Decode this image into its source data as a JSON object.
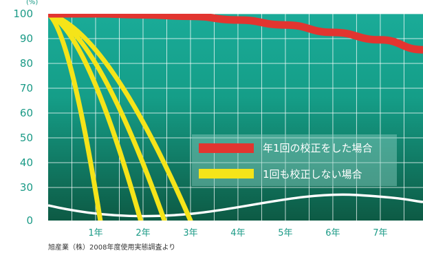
{
  "chart_data": {
    "type": "line",
    "unit_label": "(%)",
    "y_ticks": [
      "100",
      "90",
      "80",
      "70",
      "60",
      "50",
      "40",
      "30",
      "0"
    ],
    "x_ticks": [
      "1年",
      "2年",
      "3年",
      "4年",
      "5年",
      "6年",
      "7年"
    ],
    "x_tick_values": [
      1,
      2,
      3,
      4,
      5,
      6,
      7
    ],
    "xlim": [
      0,
      7.9
    ],
    "series": [
      {
        "name": "年1回の校正をした場合",
        "color": "#e23530",
        "style": "thick-red",
        "points": [
          [
            0,
            100
          ],
          [
            1,
            100
          ],
          [
            2,
            99.6
          ],
          [
            3,
            99
          ],
          [
            4,
            97.5
          ],
          [
            5,
            95.5
          ],
          [
            6,
            92.5
          ],
          [
            7,
            89.5
          ],
          [
            7.9,
            85.5
          ]
        ]
      },
      {
        "name": "1回も校正しない場合",
        "color": "#f5e419",
        "style": "yellow",
        "curves": [
          [
            [
              0,
              100
            ],
            [
              1.1,
              0
            ]
          ],
          [
            [
              0,
              100
            ],
            [
              1.95,
              0
            ]
          ],
          [
            [
              0,
              100
            ],
            [
              2.45,
              0
            ]
          ],
          [
            [
              0,
              100
            ],
            [
              3.0,
              0
            ]
          ]
        ]
      }
    ],
    "ylim": [
      0,
      100
    ],
    "legend_position": "right-center"
  },
  "source_note": "旭産業（株）2008年度使用実態調査より",
  "colors": {
    "bg_top": "#1aab98",
    "bg_bottom": "#0f5c45",
    "grid": "#ffffff",
    "red": "#e23530",
    "yellow": "#f5e419",
    "tick": "#1a9a86"
  }
}
